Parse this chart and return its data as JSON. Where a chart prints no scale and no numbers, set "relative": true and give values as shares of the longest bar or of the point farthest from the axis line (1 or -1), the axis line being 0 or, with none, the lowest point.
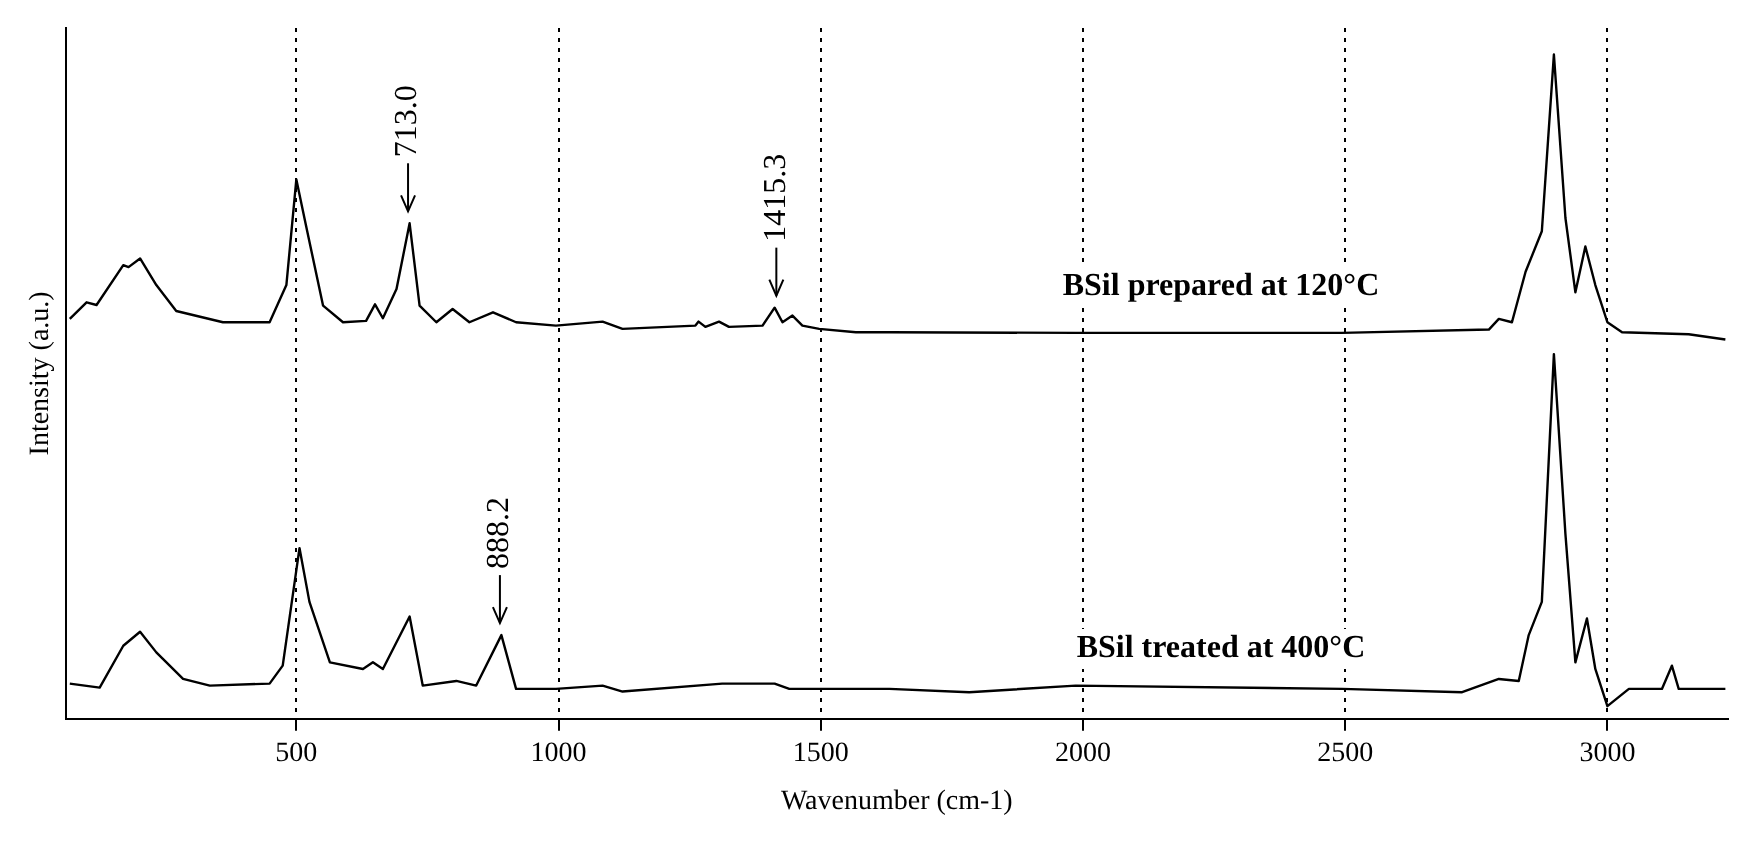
{
  "chart_data": {
    "type": "line",
    "relative": true,
    "xlabel": "Wavenumber (cm-1)",
    "ylabel": "Intensity (a.u.)",
    "xlim": [
      60,
      3230
    ],
    "xticks": [
      500,
      1000,
      1500,
      2000,
      2500,
      3000
    ],
    "grid": "x",
    "tick_labels": "x",
    "marker": "none",
    "line_style": "solid",
    "annotations": [
      {
        "text": "713.0",
        "x": 713,
        "y": 0.746
      },
      {
        "text": "1415.3",
        "x": 1415.3,
        "y": 0.619
      },
      {
        "text": "888.2",
        "x": 888.2,
        "y": 0.126
      }
    ],
    "series": [
      {
        "name": "BSil prepared at 120°C",
        "color": "#000000",
        "x": [
          68,
          100,
          119,
          170,
          180,
          202,
          233,
          271,
          360,
          449,
          481,
          500,
          518,
          551,
          589,
          633,
          650,
          665,
          691,
          716,
          735,
          767,
          798,
          830,
          875,
          919,
          995,
          1084,
          1122,
          1261,
          1267,
          1280,
          1306,
          1325,
          1389,
          1412,
          1427,
          1446,
          1465,
          1497,
          1567,
          1631,
          1986,
          2494,
          2774,
          2793,
          2818,
          2844,
          2875,
          2898,
          2920,
          2939,
          2958,
          2977,
          3000,
          3028,
          3155,
          3225
        ],
        "values": [
          0.602,
          0.627,
          0.623,
          0.683,
          0.68,
          0.693,
          0.653,
          0.614,
          0.597,
          0.597,
          0.653,
          0.812,
          0.744,
          0.622,
          0.597,
          0.599,
          0.624,
          0.603,
          0.647,
          0.746,
          0.622,
          0.597,
          0.617,
          0.597,
          0.612,
          0.597,
          0.592,
          0.598,
          0.587,
          0.592,
          0.598,
          0.59,
          0.598,
          0.59,
          0.592,
          0.619,
          0.597,
          0.607,
          0.592,
          0.587,
          0.582,
          0.582,
          0.581,
          0.581,
          0.586,
          0.602,
          0.597,
          0.673,
          0.734,
          1.0,
          0.754,
          0.642,
          0.711,
          0.653,
          0.597,
          0.582,
          0.579,
          0.571
        ]
      },
      {
        "name": "BSil treated at 400°C",
        "color": "#000000",
        "x": [
          68,
          125,
          170,
          202,
          233,
          284,
          335,
          449,
          474,
          506,
          525,
          564,
          627,
          646,
          665,
          716,
          741,
          805,
          843,
          891,
          919,
          995,
          1084,
          1122,
          1312,
          1412,
          1440,
          1567,
          1631,
          1783,
          1986,
          2494,
          2723,
          2793,
          2831,
          2850,
          2875,
          2898,
          2920,
          2939,
          2961,
          2977,
          3000,
          3041,
          3104,
          3123,
          3136,
          3225
        ],
        "values": [
          0.053,
          0.047,
          0.11,
          0.131,
          0.1,
          0.06,
          0.05,
          0.053,
          0.08,
          0.257,
          0.176,
          0.085,
          0.075,
          0.085,
          0.075,
          0.154,
          0.05,
          0.057,
          0.05,
          0.126,
          0.045,
          0.045,
          0.05,
          0.041,
          0.053,
          0.053,
          0.045,
          0.045,
          0.045,
          0.04,
          0.05,
          0.045,
          0.04,
          0.06,
          0.057,
          0.126,
          0.176,
          0.549,
          0.278,
          0.085,
          0.151,
          0.075,
          0.019,
          0.045,
          0.045,
          0.08,
          0.045,
          0.045
        ]
      }
    ]
  }
}
